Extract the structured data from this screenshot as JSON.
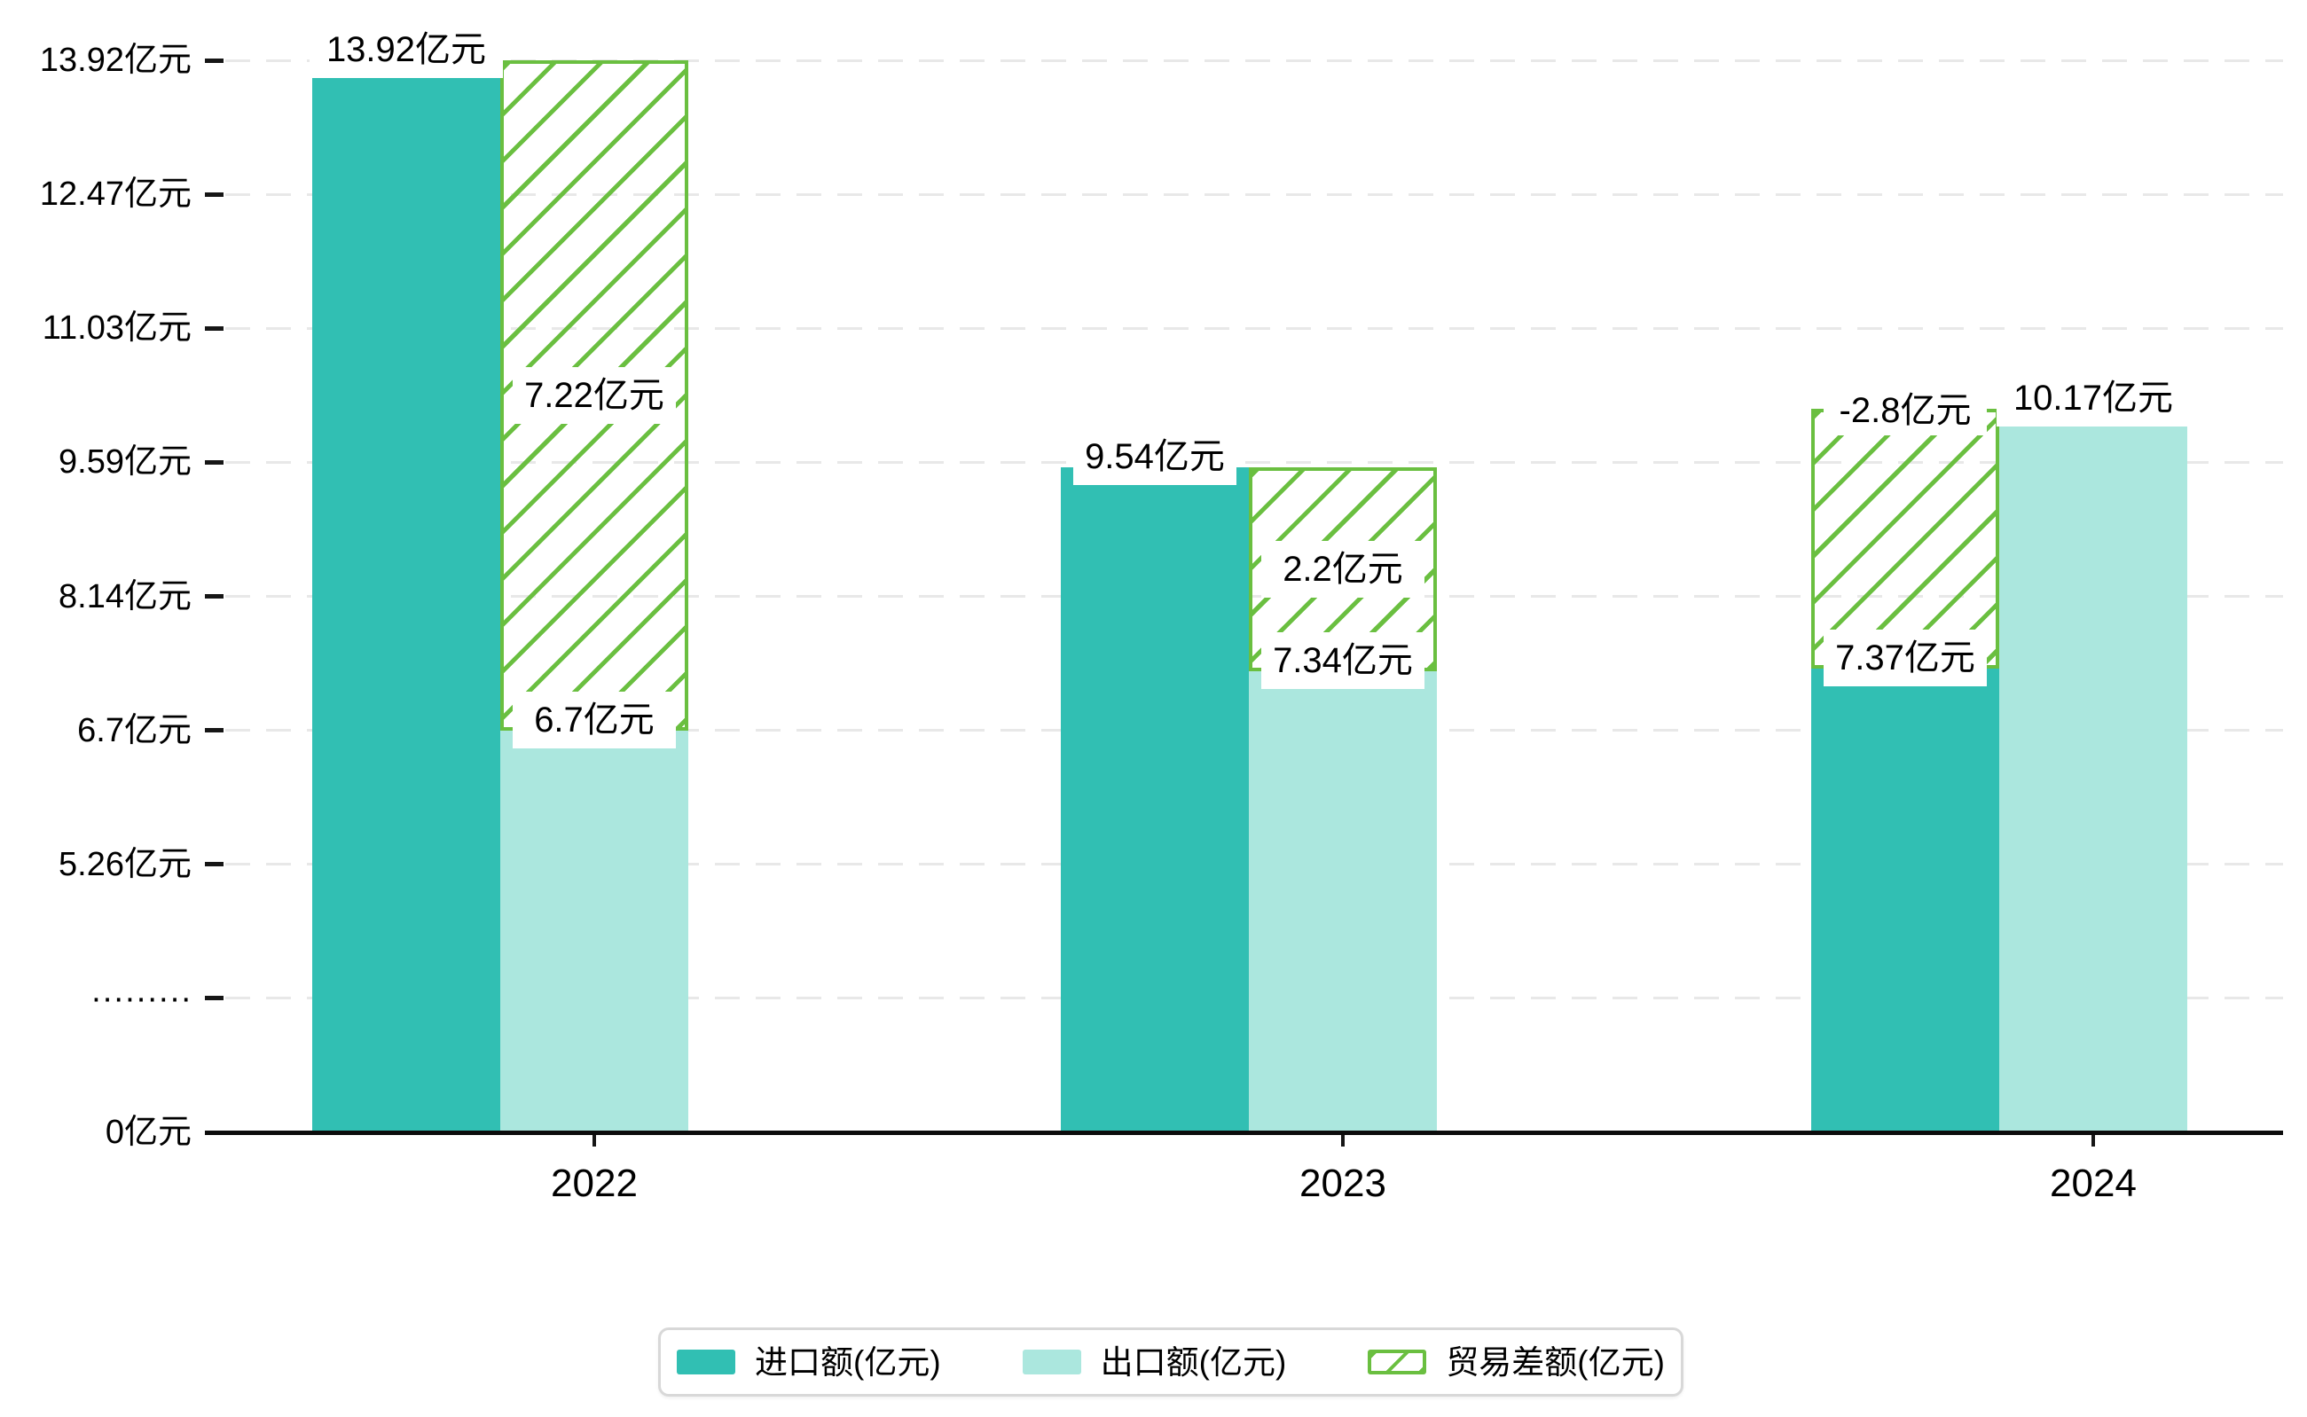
{
  "chart_data": {
    "type": "bar",
    "title": "",
    "unit": "亿元",
    "categories": [
      "2022",
      "2023",
      "2024"
    ],
    "series": [
      {
        "name": "进口额(亿元)",
        "key": "import",
        "color": "#31bfb3",
        "values": [
          13.92,
          9.54,
          7.37
        ]
      },
      {
        "name": "出口额(亿元)",
        "key": "export",
        "color": "#abe7de",
        "values": [
          6.7,
          7.34,
          10.17
        ]
      },
      {
        "name": "贸易差额(亿元)",
        "key": "trade_balance",
        "color": "#6abf40",
        "values": [
          7.22,
          2.2,
          -2.8
        ],
        "render": "hatched-overlay-on-smaller-bar"
      }
    ],
    "value_labels": {
      "import": [
        "13.92亿元",
        "9.54亿元",
        "7.37亿元"
      ],
      "export": [
        "6.7亿元",
        "7.34亿元",
        "10.17亿元"
      ],
      "trade_balance": [
        "7.22亿元",
        "2.2亿元",
        "-2.8亿元"
      ]
    },
    "y_axis": {
      "tick_labels": [
        "13.92亿元",
        "12.47亿元",
        "11.03亿元",
        "9.59亿元",
        "8.14亿元",
        "6.7亿元",
        "5.26亿元",
        "·········",
        "0亿元"
      ],
      "tick_values": [
        13.92,
        12.47,
        11.03,
        9.59,
        8.14,
        6.7,
        5.26,
        null,
        0
      ],
      "broken_axis_marker": "·········",
      "grid": "dashed"
    },
    "x_axis": {
      "tick_labels": [
        "2022",
        "2023",
        "2024"
      ]
    },
    "legend_position": "bottom",
    "colors": {
      "grid": "#e8e8e8",
      "axis": "#0c0c0c",
      "label_bg": "#ffffff",
      "text": "#000000",
      "legend_border": "#d8d8d8",
      "import_bar": "#31bfb3",
      "export_bar": "#abe7de",
      "hatch_green": "#6abf40"
    }
  }
}
